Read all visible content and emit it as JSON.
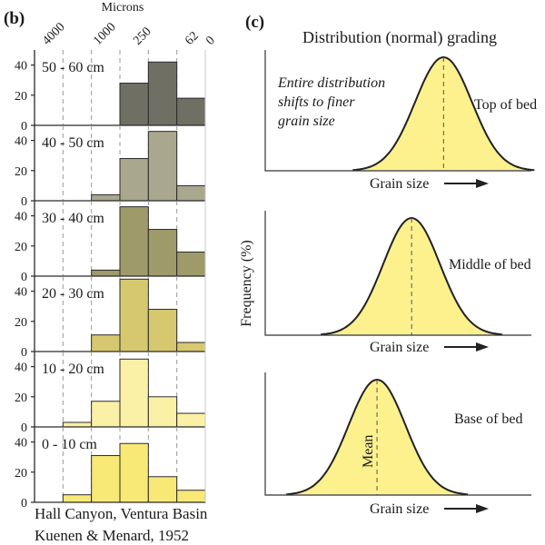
{
  "panel_b": {
    "letter": "(b)",
    "top_axis_label": "Microns",
    "credit_line1": "Hall Canyon, Ventura Basin",
    "credit_line2": "Kuenen & Menard, 1952"
  },
  "panel_c": {
    "letter": "(c)",
    "title": "Distribution (normal) grading",
    "annotation_line1": "Entire distribution",
    "annotation_line2": "shifts to finer",
    "annotation_line3": "grain size",
    "y_axis_label": "Frequency (%)",
    "mean_label": "Mean"
  },
  "chart_data": [
    {
      "type": "bar",
      "x_axis": {
        "label": "Microns",
        "tick_labels": [
          "4000",
          "1000",
          "250",
          "62",
          "0"
        ]
      },
      "y_ticks": [
        "0",
        "20",
        "40"
      ],
      "ylim": [
        0,
        50
      ],
      "bin_count": 6,
      "grid": true,
      "series": [
        {
          "name": "50 - 60 cm",
          "color": "#6f6f64",
          "values": [
            0,
            0,
            0,
            28,
            42,
            18
          ]
        },
        {
          "name": "40 - 50 cm",
          "color": "#a9a78e",
          "values": [
            0,
            0,
            4,
            28,
            46,
            10
          ]
        },
        {
          "name": "30 - 40 cm",
          "color": "#9e9a6a",
          "values": [
            0,
            0,
            4,
            46,
            31,
            16
          ]
        },
        {
          "name": "20 - 30 cm",
          "color": "#d6c86f",
          "values": [
            0,
            0,
            11,
            48,
            28,
            6
          ]
        },
        {
          "name": "10 - 20 cm",
          "color": "#fbf1a6",
          "values": [
            0,
            3,
            17,
            45,
            20,
            9
          ]
        },
        {
          "name": "0 - 10 cm",
          "color": "#f8e876",
          "values": [
            0,
            5,
            31,
            39,
            17,
            8
          ]
        }
      ]
    },
    {
      "type": "area",
      "x_axis": {
        "label": "Grain size"
      },
      "y_axis": {
        "label": "Frequency (%)"
      },
      "curves": [
        {
          "name": "Top of bed",
          "mean_position": 0.67,
          "fill": "#fcf18d"
        },
        {
          "name": "Middle of bed",
          "mean_position": 0.55,
          "fill": "#fcf18d"
        },
        {
          "name": "Base of bed",
          "mean_position": 0.42,
          "fill": "#fcf18d"
        }
      ]
    }
  ]
}
